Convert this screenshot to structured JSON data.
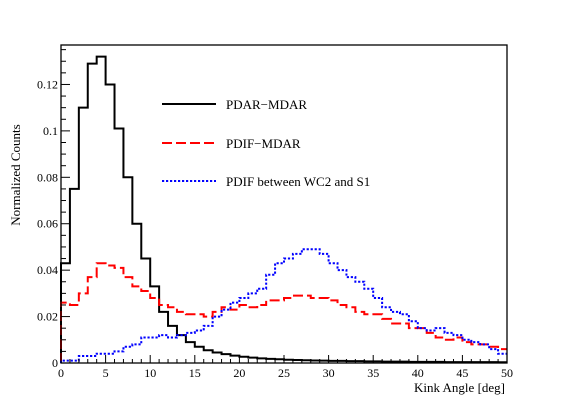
{
  "chart_data": {
    "type": "line",
    "xlabel": "Kink Angle [deg]",
    "ylabel": "Normalized Counts",
    "xlim": [
      0,
      50
    ],
    "ylim": [
      0,
      0.137
    ],
    "x_ticks": [
      0,
      5,
      10,
      15,
      20,
      25,
      30,
      35,
      40,
      45,
      50
    ],
    "x_tick_labels": [
      "0",
      "5",
      "10",
      "15",
      "20",
      "25",
      "30",
      "35",
      "40",
      "45",
      "50"
    ],
    "y_ticks": [
      0,
      0.02,
      0.04,
      0.06,
      0.08,
      0.1,
      0.12
    ],
    "y_tick_labels": [
      "0",
      "0.02",
      "0.04",
      "0.06",
      "0.08",
      "0.1",
      "0.12"
    ],
    "grid": false,
    "legend_position": "top-center",
    "bin_width": 1,
    "bin_edges_start": 0,
    "series": [
      {
        "name": "PDAR−MDAR",
        "color": "#000000",
        "style": "solid",
        "values": [
          0.043,
          0.075,
          0.11,
          0.129,
          0.132,
          0.12,
          0.101,
          0.08,
          0.06,
          0.045,
          0.033,
          0.022,
          0.016,
          0.012,
          0.009,
          0.007,
          0.0055,
          0.0045,
          0.0038,
          0.0032,
          0.0027,
          0.0023,
          0.002,
          0.0018,
          0.0016,
          0.0014,
          0.0013,
          0.0012,
          0.0011,
          0.001,
          0.0009,
          0.0009,
          0.0008,
          0.0008,
          0.0007,
          0.0007,
          0.0006,
          0.0006,
          0.0006,
          0.0005,
          0.0005,
          0.0005,
          0.0005,
          0.0004,
          0.0004,
          0.0004,
          0.0004,
          0.0004,
          0.0004,
          0.0003
        ]
      },
      {
        "name": "PDIF−MDAR",
        "color": "#ff0000",
        "style": "dashed",
        "values": [
          0.026,
          0.025,
          0.03,
          0.037,
          0.043,
          0.042,
          0.041,
          0.037,
          0.033,
          0.031,
          0.028,
          0.025,
          0.024,
          0.022,
          0.021,
          0.021,
          0.02,
          0.022,
          0.024,
          0.023,
          0.025,
          0.024,
          0.025,
          0.027,
          0.027,
          0.028,
          0.029,
          0.029,
          0.028,
          0.028,
          0.027,
          0.025,
          0.024,
          0.022,
          0.021,
          0.021,
          0.019,
          0.017,
          0.017,
          0.015,
          0.015,
          0.013,
          0.011,
          0.01,
          0.011,
          0.009,
          0.008,
          0.008,
          0.007,
          0.006
        ]
      },
      {
        "name": "PDIF between WC2 and S1",
        "color": "#0000ff",
        "style": "dotted",
        "values": [
          0.001,
          0.001,
          0.003,
          0.003,
          0.004,
          0.004,
          0.005,
          0.007,
          0.008,
          0.011,
          0.011,
          0.012,
          0.011,
          0.012,
          0.013,
          0.014,
          0.016,
          0.02,
          0.023,
          0.026,
          0.028,
          0.03,
          0.032,
          0.038,
          0.043,
          0.045,
          0.047,
          0.049,
          0.049,
          0.047,
          0.043,
          0.04,
          0.037,
          0.035,
          0.032,
          0.028,
          0.024,
          0.022,
          0.021,
          0.018,
          0.015,
          0.014,
          0.015,
          0.013,
          0.012,
          0.01,
          0.009,
          0.008,
          0.006,
          0.004
        ]
      }
    ]
  }
}
